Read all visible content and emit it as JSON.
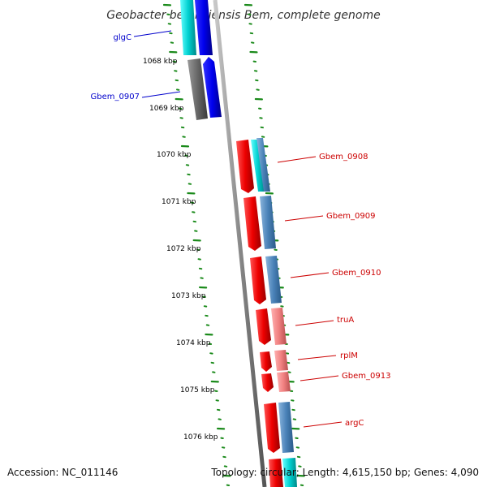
{
  "title": "Geobacter bemidjiensis Bem, complete genome",
  "footer": {
    "accession": "Accession: NC_011146",
    "topology": "Topology: circular; Length: 4,615,150 bp; Genes: 4,090"
  },
  "colors": {
    "backbone": "#7a7a7a",
    "tick": "#1a8a1a",
    "label_left": "#0000cc",
    "label_right": "#cc0000"
  },
  "kbp_labels": [
    "1068 kbp",
    "1069 kbp",
    "1070 kbp",
    "1071 kbp",
    "1072 kbp",
    "1073 kbp",
    "1074 kbp",
    "1075 kbp",
    "1076 kbp"
  ],
  "genes_left": [
    {
      "name": "glgC",
      "color": "#00c8c8",
      "strand": "reverse"
    },
    {
      "name": "Gbem_0907",
      "color": "#606060",
      "strand": "forward"
    }
  ],
  "genes_right": [
    {
      "name": "Gbem_0908",
      "color": "#e60000",
      "strand": "forward"
    },
    {
      "name": "Gbem_0909",
      "color": "#e60000",
      "strand": "forward"
    },
    {
      "name": "Gbem_0910",
      "color": "#e60000",
      "strand": "forward"
    },
    {
      "name": "truA",
      "color": "#e60000",
      "strand": "forward"
    },
    {
      "name": "rplM",
      "color": "#e60000",
      "strand": "forward"
    },
    {
      "name": "Gbem_0913",
      "color": "#e60000",
      "strand": "forward"
    },
    {
      "name": "argC",
      "color": "#e60000",
      "strand": "forward"
    }
  ]
}
